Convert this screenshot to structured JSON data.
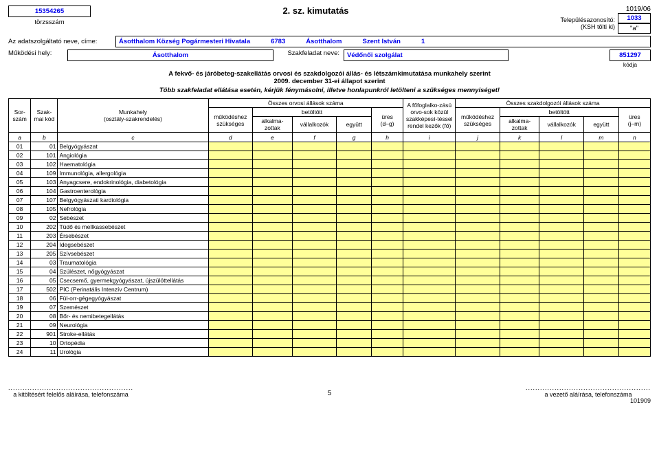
{
  "top": {
    "torzs_number": "15354265",
    "torzs_label": "törzsszám",
    "title": "2. sz. kimutatás",
    "code_top": "1019/06",
    "tel_label": "Településazonosító:",
    "ksh_label": "(KSH tölti ki)",
    "tel_value": "1033",
    "a_label": "\"a\""
  },
  "line1": {
    "label": "Az adatszolgáltató neve, címe:",
    "v1": "Ásotthalom Község Pogármesteri Hivatala",
    "v2": "6783",
    "v3": "Ásotthalom",
    "v4": "Szent István",
    "v5": "1"
  },
  "line2": {
    "label1": "Működési hely:",
    "v1": "Ásotthalom",
    "label2": "Szakfeladat neve:",
    "v2": "Védőnői szolgálat",
    "code": "851297",
    "codelabel": "kódja"
  },
  "heading": {
    "h1": "A fekvő- és járóbeteg-szakellátás orvosi és szakdolgozói állás- és létszámkimutatása munkahely szerint",
    "h2": "2009. december 31-ei állapot szerint",
    "h3": "Több szakfeladat ellátása esetén, kérjük fénymásolni, illetve honlapunkról letölteni a szükséges mennyiséget!"
  },
  "headers": {
    "sorszam": "Sor-szám",
    "szakmai": "Szak-mai kód",
    "munkahely": "Munkahely\n(osztály-szakrendelés)",
    "osszes_orvosi": "Összes orvosi állások száma",
    "mukodes": "működéshez szükséges",
    "betoltott": "betöltött",
    "alkalma": "alkalma-zottak",
    "vallal": "vállalkozók",
    "egyutt": "együtt",
    "ures_dg": "üres\n(d–g)",
    "fofoglalk": "A főfoglalko-zású orvo-sok közül szakképesí-téssel rendel kezők (fő)",
    "osszes_szak": "Összes szakdolgozói állások száma",
    "ures_jm": "üres\n(j–m)"
  },
  "collabels": [
    "a",
    "b",
    "c",
    "d",
    "e",
    "f",
    "g",
    "h",
    "i",
    "j",
    "k",
    "l",
    "m",
    "n"
  ],
  "rows": [
    {
      "n": "01",
      "k": "01",
      "m": "Belgyógyászat"
    },
    {
      "n": "02",
      "k": "101",
      "m": "Angiológia"
    },
    {
      "n": "03",
      "k": "102",
      "m": "Haematológia"
    },
    {
      "n": "04",
      "k": "109",
      "m": "Immunológia, allergológia"
    },
    {
      "n": "05",
      "k": "103",
      "m": "Anyagcsere, endokrinológia, diabetológia"
    },
    {
      "n": "06",
      "k": "104",
      "m": "Gastroenterológia"
    },
    {
      "n": "07",
      "k": "107",
      "m": "Belgyógyászati kardiológia"
    },
    {
      "n": "08",
      "k": "105",
      "m": "Nefrológia"
    },
    {
      "n": "09",
      "k": "02",
      "m": "Sebészet"
    },
    {
      "n": "10",
      "k": "202",
      "m": "Tüdő és mellkassebészet"
    },
    {
      "n": "11",
      "k": "203",
      "m": "Érsebészet"
    },
    {
      "n": "12",
      "k": "204",
      "m": "Idegsebészet"
    },
    {
      "n": "13",
      "k": "205",
      "m": "Szívsebészet"
    },
    {
      "n": "14",
      "k": "03",
      "m": "Traumatológia"
    },
    {
      "n": "15",
      "k": "04",
      "m": "Szülészet, nőgyógyászat"
    },
    {
      "n": "16",
      "k": "05",
      "m": "Csecsemő, gyermekgyógyászat, újszülöttellátás"
    },
    {
      "n": "17",
      "k": "502",
      "m": "PIC (Perinatális Intenzív Centrum)"
    },
    {
      "n": "18",
      "k": "06",
      "m": "Fül-orr-gégegyógyászat"
    },
    {
      "n": "19",
      "k": "07",
      "m": "Szemészet"
    },
    {
      "n": "20",
      "k": "08",
      "m": "Bőr- és nemibetegellátás"
    },
    {
      "n": "21",
      "k": "09",
      "m": "Neurológia"
    },
    {
      "n": "22",
      "k": "901",
      "m": "Stroke-ellátás"
    },
    {
      "n": "23",
      "k": "10",
      "m": "Ortopédia"
    },
    {
      "n": "24",
      "k": "11",
      "m": "Urológia"
    }
  ],
  "footer": {
    "dots": "....................................................",
    "left": "a kitöltésért felelős aláírása, telefonszáma",
    "right": "a vezető aláírása, telefonszáma",
    "page": "5",
    "code": "101909"
  }
}
